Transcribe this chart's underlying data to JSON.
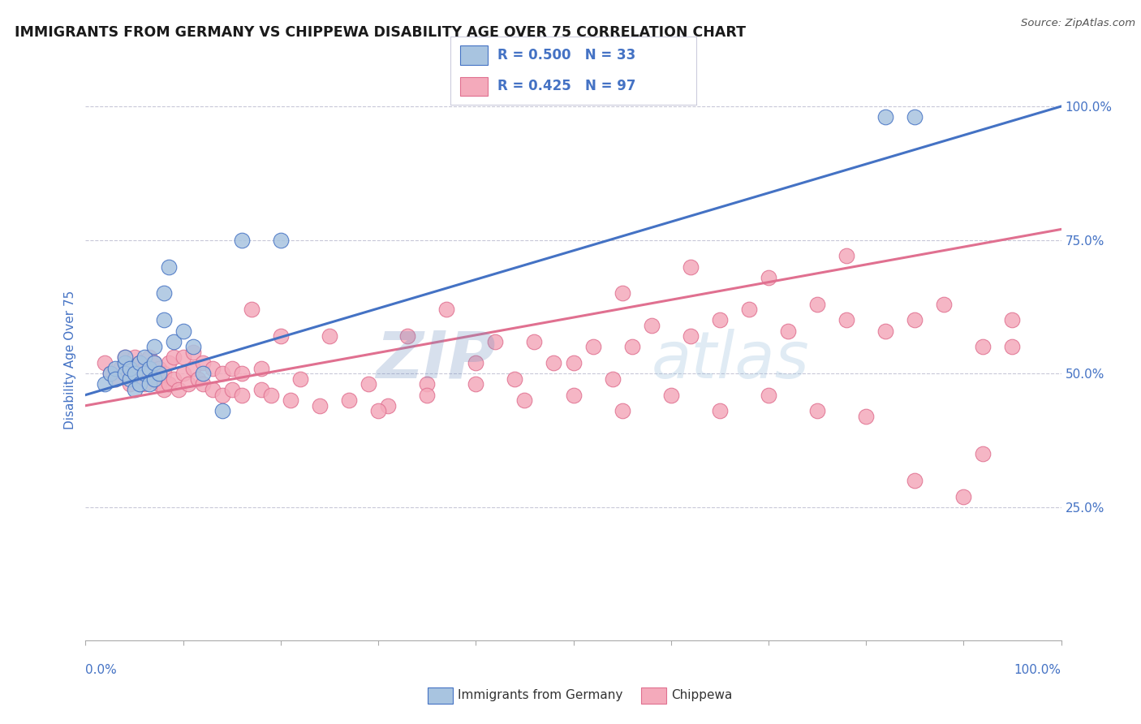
{
  "title": "IMMIGRANTS FROM GERMANY VS CHIPPEWA DISABILITY AGE OVER 75 CORRELATION CHART",
  "source_text": "Source: ZipAtlas.com",
  "ylabel": "Disability Age Over 75",
  "watermark_zip": "ZIP",
  "watermark_atlas": "atlas",
  "legend_blue_r": "R = 0.500",
  "legend_blue_n": "N = 33",
  "legend_pink_r": "R = 0.425",
  "legend_pink_n": "N = 97",
  "blue_fill": "#A8C4E0",
  "blue_edge": "#4472C4",
  "pink_fill": "#F4AABB",
  "pink_edge": "#E07090",
  "blue_line": "#4472C4",
  "pink_line": "#E07090",
  "axis_color": "#4472C4",
  "grid_color": "#C8C8D8",
  "title_color": "#1a1a1a",
  "blue_scatter_x": [
    0.02,
    0.025,
    0.03,
    0.03,
    0.04,
    0.04,
    0.04,
    0.045,
    0.045,
    0.05,
    0.05,
    0.055,
    0.055,
    0.06,
    0.06,
    0.065,
    0.065,
    0.07,
    0.07,
    0.07,
    0.075,
    0.08,
    0.08,
    0.085,
    0.09,
    0.1,
    0.11,
    0.12,
    0.14,
    0.16,
    0.2,
    0.82,
    0.85
  ],
  "blue_scatter_y": [
    0.48,
    0.5,
    0.51,
    0.49,
    0.52,
    0.5,
    0.53,
    0.49,
    0.51,
    0.47,
    0.5,
    0.48,
    0.52,
    0.5,
    0.53,
    0.48,
    0.51,
    0.49,
    0.52,
    0.55,
    0.5,
    0.6,
    0.65,
    0.7,
    0.56,
    0.58,
    0.55,
    0.5,
    0.43,
    0.75,
    0.75,
    0.98,
    0.98
  ],
  "pink_scatter_x": [
    0.02,
    0.025,
    0.03,
    0.035,
    0.04,
    0.04,
    0.045,
    0.05,
    0.05,
    0.055,
    0.055,
    0.06,
    0.06,
    0.065,
    0.065,
    0.07,
    0.07,
    0.075,
    0.075,
    0.08,
    0.08,
    0.085,
    0.085,
    0.09,
    0.09,
    0.095,
    0.1,
    0.1,
    0.105,
    0.11,
    0.11,
    0.115,
    0.12,
    0.12,
    0.13,
    0.13,
    0.14,
    0.14,
    0.15,
    0.15,
    0.16,
    0.16,
    0.17,
    0.18,
    0.18,
    0.19,
    0.2,
    0.21,
    0.22,
    0.24,
    0.25,
    0.27,
    0.29,
    0.31,
    0.33,
    0.35,
    0.37,
    0.4,
    0.42,
    0.44,
    0.46,
    0.48,
    0.5,
    0.52,
    0.54,
    0.56,
    0.58,
    0.62,
    0.65,
    0.68,
    0.72,
    0.75,
    0.78,
    0.82,
    0.85,
    0.88,
    0.92,
    0.95,
    0.3,
    0.35,
    0.4,
    0.45,
    0.5,
    0.55,
    0.6,
    0.65,
    0.7,
    0.75,
    0.8,
    0.85,
    0.9,
    0.92,
    0.95,
    0.55,
    0.62,
    0.7,
    0.78
  ],
  "pink_scatter_y": [
    0.52,
    0.5,
    0.49,
    0.51,
    0.5,
    0.53,
    0.48,
    0.51,
    0.53,
    0.49,
    0.52,
    0.48,
    0.51,
    0.5,
    0.53,
    0.49,
    0.52,
    0.48,
    0.51,
    0.47,
    0.5,
    0.48,
    0.52,
    0.49,
    0.53,
    0.47,
    0.5,
    0.53,
    0.48,
    0.51,
    0.54,
    0.49,
    0.48,
    0.52,
    0.47,
    0.51,
    0.46,
    0.5,
    0.47,
    0.51,
    0.46,
    0.5,
    0.62,
    0.47,
    0.51,
    0.46,
    0.57,
    0.45,
    0.49,
    0.44,
    0.57,
    0.45,
    0.48,
    0.44,
    0.57,
    0.48,
    0.62,
    0.52,
    0.56,
    0.49,
    0.56,
    0.52,
    0.52,
    0.55,
    0.49,
    0.55,
    0.59,
    0.57,
    0.6,
    0.62,
    0.58,
    0.63,
    0.6,
    0.58,
    0.6,
    0.63,
    0.55,
    0.6,
    0.43,
    0.46,
    0.48,
    0.45,
    0.46,
    0.43,
    0.46,
    0.43,
    0.46,
    0.43,
    0.42,
    0.3,
    0.27,
    0.35,
    0.55,
    0.65,
    0.7,
    0.68,
    0.72
  ]
}
